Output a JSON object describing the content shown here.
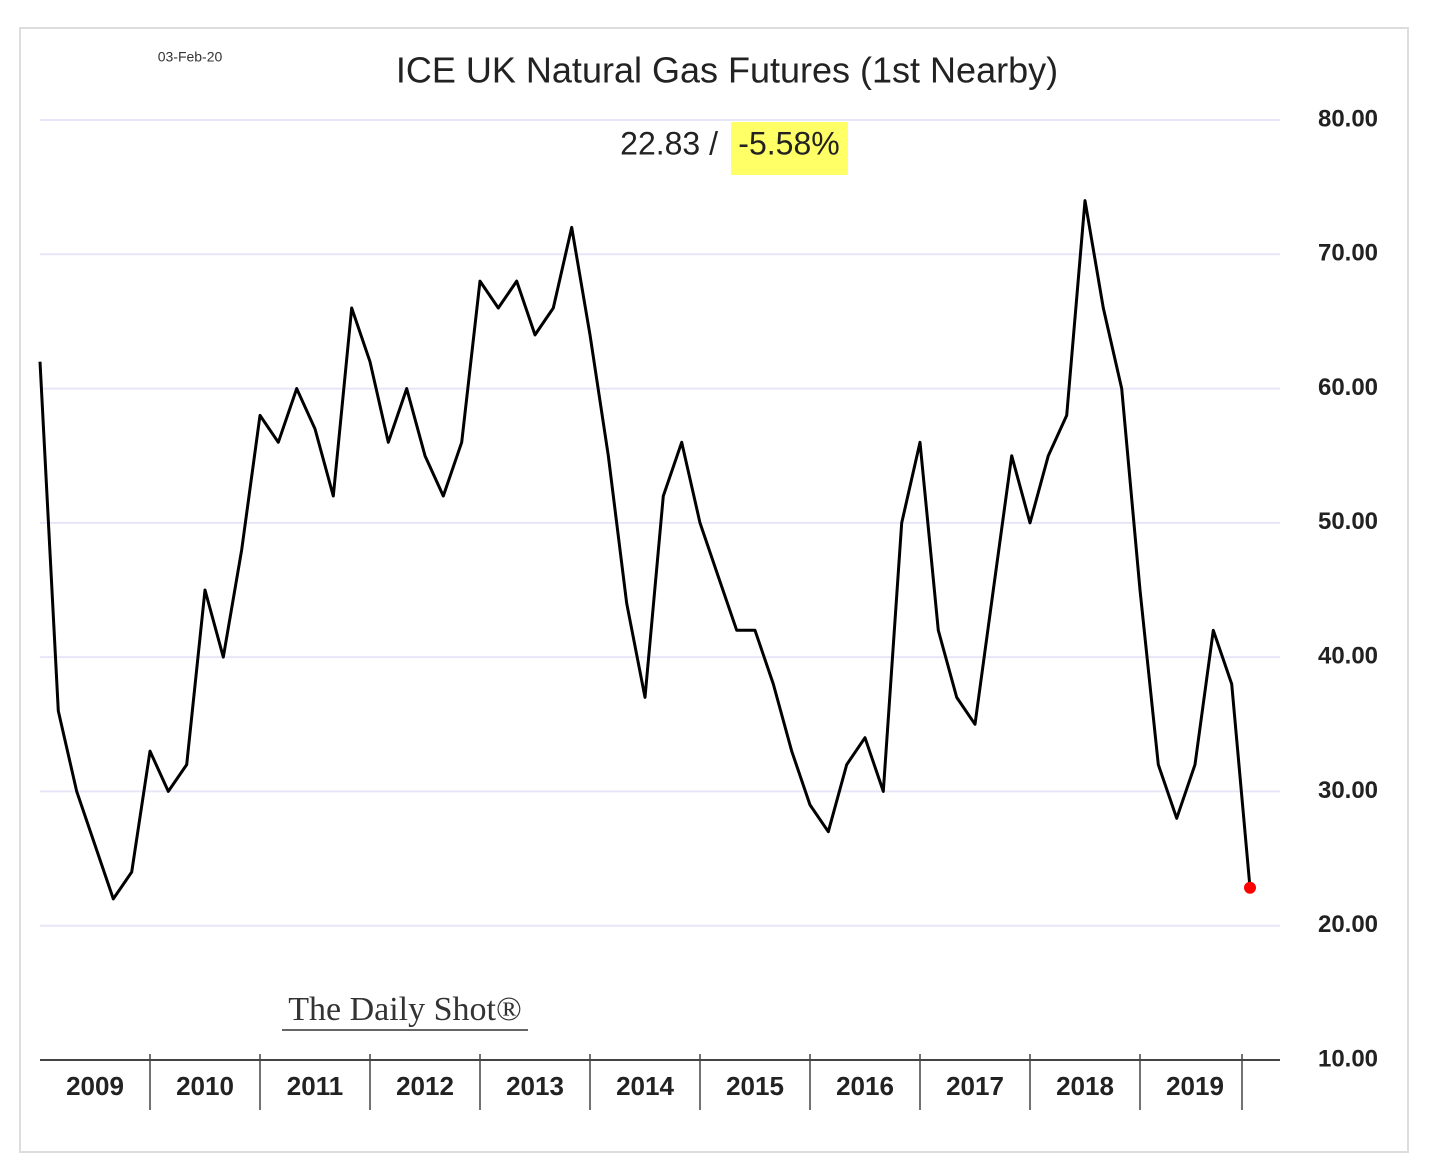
{
  "chart_data": {
    "type": "line",
    "title": "ICE UK Natural Gas Futures (1st Nearby)",
    "date": "03-Feb-20",
    "annotations": [
      "22.83  /",
      "-5.58%"
    ],
    "source": "The Daily Shot®",
    "categories": [
      "2009",
      null,
      null,
      null,
      null,
      null,
      "2010",
      null,
      null,
      null,
      null,
      null,
      "2011",
      null,
      null,
      null,
      null,
      null,
      "2012",
      null,
      null,
      null,
      null,
      null,
      "2013",
      null,
      null,
      null,
      null,
      null,
      "2014",
      null,
      null,
      null,
      null,
      null,
      "2015",
      null,
      null,
      null,
      null,
      null,
      "2016",
      null,
      null,
      null,
      null,
      null,
      "2017",
      null,
      null,
      null,
      null,
      null,
      "2018",
      null,
      null,
      null,
      null,
      null,
      "2019",
      null,
      null,
      null,
      null,
      null,
      null
    ],
    "series": [
      {
        "name": "ICE UK Natural Gas Futures",
        "color": "#000000",
        "values": [
          62,
          36,
          30,
          26,
          22,
          24,
          33,
          30,
          32,
          45,
          40,
          48,
          58,
          56,
          60,
          57,
          52,
          66,
          62,
          56,
          60,
          55,
          52,
          56,
          68,
          66,
          68,
          64,
          66,
          72,
          64,
          55,
          44,
          37,
          52,
          56,
          50,
          46,
          42,
          42,
          38,
          33,
          29,
          27,
          32,
          34,
          30,
          50,
          56,
          42,
          37,
          35,
          45,
          55,
          50,
          55,
          58,
          74,
          66,
          60,
          45,
          32,
          28,
          32,
          42,
          38,
          22.83
        ]
      }
    ],
    "last_point_color": "#ff0000",
    "ylim": [
      10,
      80
    ],
    "yticks": [
      {
        "value": 10,
        "label": "10.00"
      },
      {
        "value": 20,
        "label": "20.00"
      },
      {
        "value": 30,
        "label": "30.00"
      },
      {
        "value": 40,
        "label": "40.00"
      },
      {
        "value": 50,
        "label": "50.00"
      },
      {
        "value": 60,
        "label": "60.00"
      },
      {
        "value": 70,
        "label": "70.00"
      },
      {
        "value": 80,
        "label": "80.00"
      }
    ],
    "grid": true
  }
}
